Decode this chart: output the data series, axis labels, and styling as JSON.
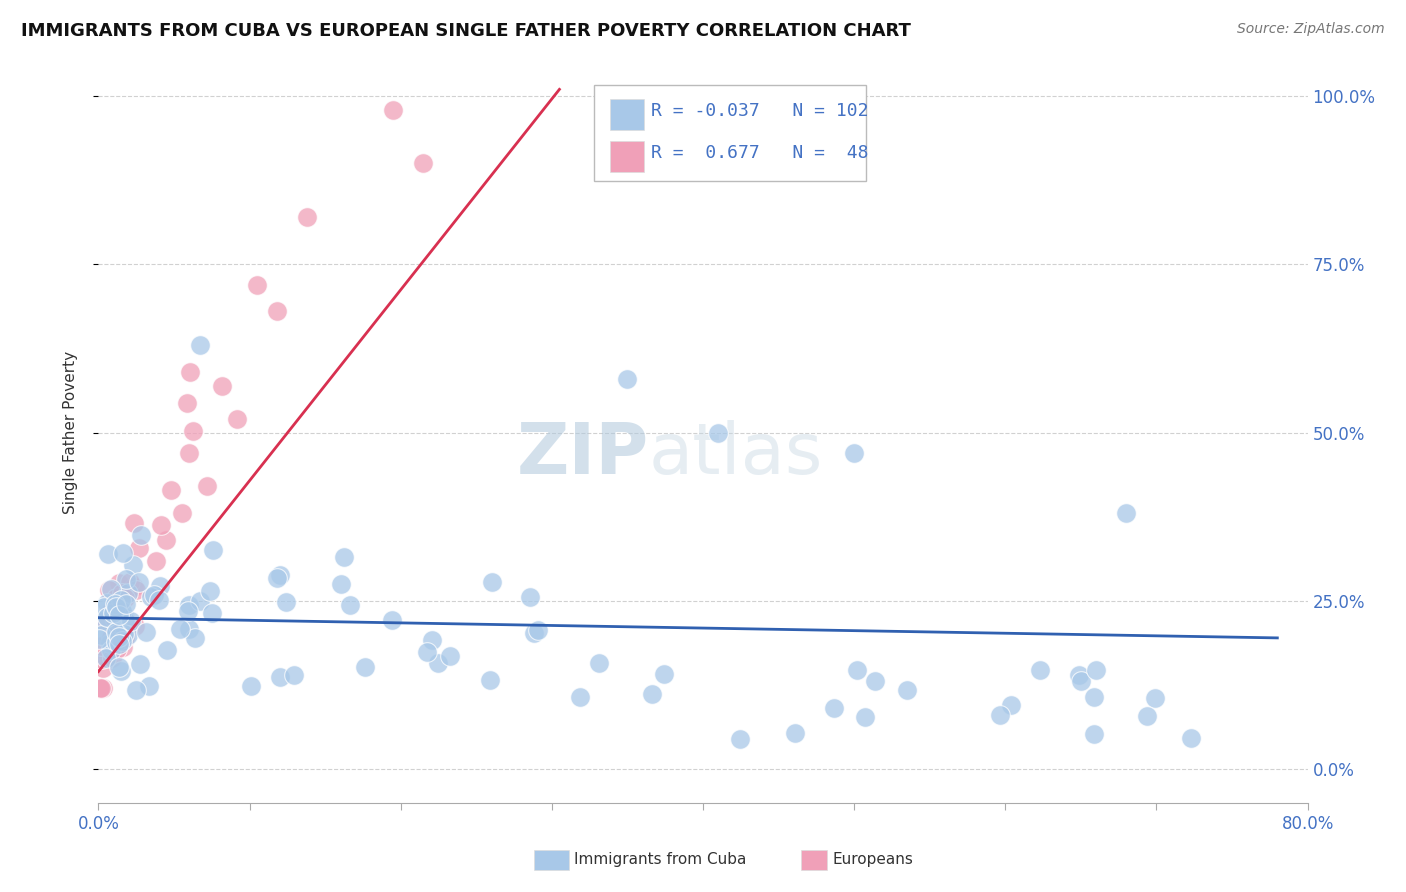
{
  "title": "IMMIGRANTS FROM CUBA VS EUROPEAN SINGLE FATHER POVERTY CORRELATION CHART",
  "source": "Source: ZipAtlas.com",
  "ylabel": "Single Father Poverty",
  "yticks_labels": [
    "0.0%",
    "25.0%",
    "50.0%",
    "75.0%",
    "100.0%"
  ],
  "ytick_vals": [
    0.0,
    0.25,
    0.5,
    0.75,
    1.0
  ],
  "xrange": [
    0.0,
    0.8
  ],
  "yrange": [
    -0.05,
    1.05
  ],
  "cuba_R": -0.037,
  "cuba_N": 102,
  "euro_R": 0.677,
  "euro_N": 48,
  "cuba_color": "#a8c8e8",
  "euro_color": "#f0a0b8",
  "cuba_line_color": "#3060b0",
  "euro_line_color": "#d83050",
  "legend_cuba_label": "Immigrants from Cuba",
  "legend_euro_label": "Europeans",
  "background_color": "#ffffff",
  "grid_color": "#cccccc",
  "watermark_zip_color": "#c0d0e0",
  "watermark_atlas_color": "#d0dde8",
  "tick_color": "#4472c4",
  "title_fontsize": 13,
  "source_fontsize": 10,
  "legend_fontsize": 13,
  "ylabel_fontsize": 11,
  "ytick_fontsize": 12,
  "xtick_fontsize": 12,
  "cuba_line_x": [
    0.0,
    0.78
  ],
  "cuba_line_y": [
    0.225,
    0.195
  ],
  "euro_line_x": [
    0.0,
    0.305
  ],
  "euro_line_y": [
    0.145,
    1.01
  ]
}
